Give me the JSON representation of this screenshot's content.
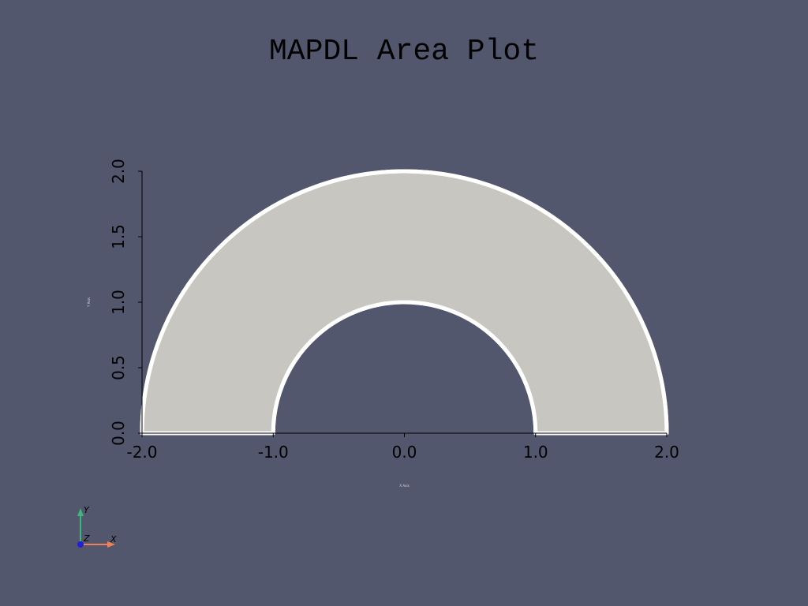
{
  "chart_data": {
    "type": "area",
    "title": "MAPDL Area Plot",
    "xlabel": "X Axis",
    "ylabel": "Y Axis",
    "xlim": [
      -2.0,
      2.0
    ],
    "ylim": [
      0.0,
      2.0
    ],
    "x_ticks": [
      "-2.0",
      "-1.0",
      "0.0",
      "1.0",
      "2.0"
    ],
    "y_ticks": [
      "0.0",
      "0.5",
      "1.0",
      "1.5",
      "2.0"
    ],
    "area": {
      "shape": "half-annulus",
      "inner_radius": 1.0,
      "outer_radius": 2.0,
      "start_angle_deg": 0,
      "end_angle_deg": 180
    },
    "colors": {
      "background": "#52576e",
      "area_fill": "#c8c6c0",
      "edge": "#ffffff",
      "axis": "#000000"
    }
  },
  "orientation_triad": {
    "x_label": "X",
    "y_label": "Y",
    "z_label": "Z",
    "colors": {
      "x": "#f0805a",
      "y": "#3fb67d",
      "z": "#1f1fd6"
    }
  }
}
